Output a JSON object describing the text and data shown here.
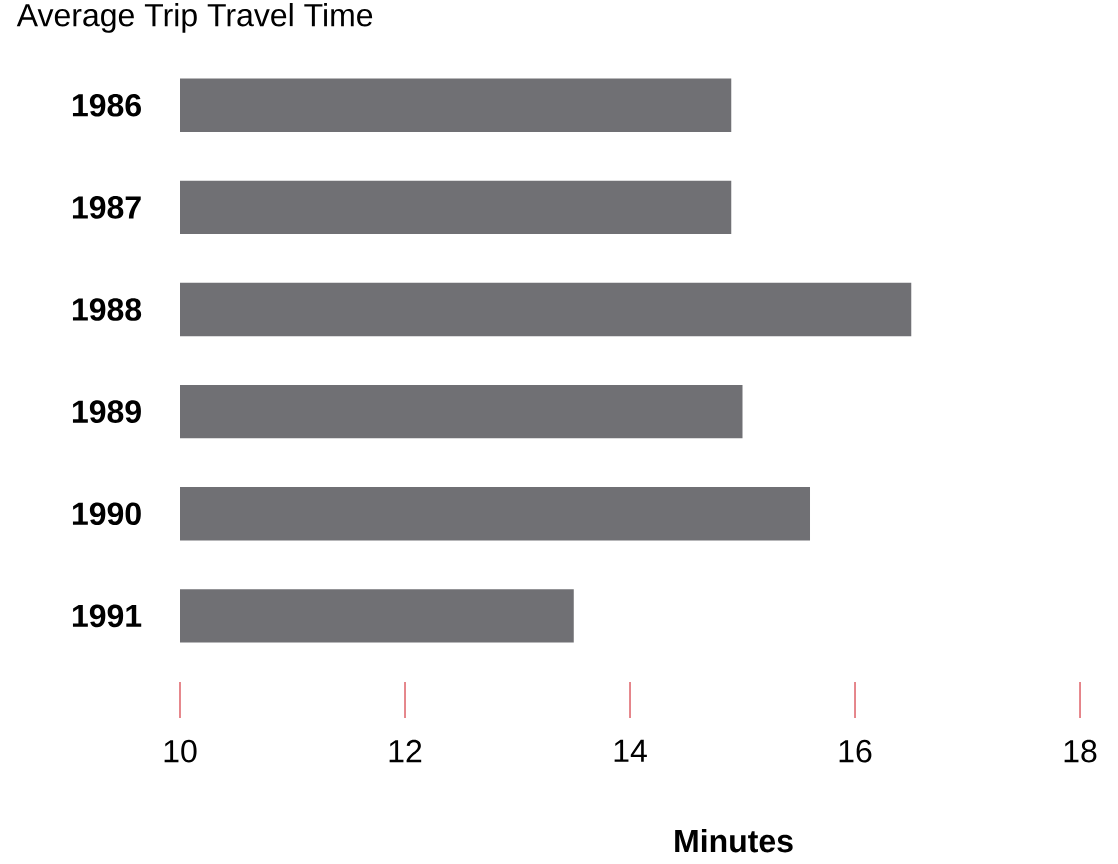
{
  "chart_data": {
    "type": "bar",
    "orientation": "horizontal",
    "title": "Average Trip Travel Time",
    "xlabel": "Minutes",
    "categories": [
      "1986",
      "1987",
      "1988",
      "1989",
      "1990",
      "1991"
    ],
    "values": [
      14.9,
      14.9,
      16.5,
      15.0,
      15.6,
      13.5
    ],
    "color": "#707074",
    "xlim": [
      10,
      18
    ],
    "xticks": [
      10,
      12,
      14,
      16,
      18
    ],
    "grid": false
  }
}
